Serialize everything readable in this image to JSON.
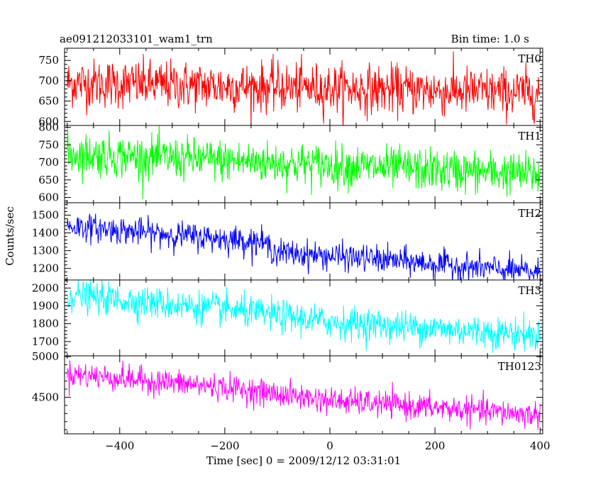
{
  "header": {
    "title": "ae091212033101_wam1_trn",
    "bin_time": "Bin time: 1.0 s"
  },
  "chart_data": {
    "type": "line",
    "xlabel": "Time [sec] 0 = 2009/12/12 03:31:01",
    "ylabel": "Counts/sec",
    "xlim": [
      -505,
      405
    ],
    "x_ticks": [
      -400,
      -200,
      0,
      200,
      400
    ],
    "x_minor_step": 50,
    "x_sample_range": [
      -500,
      400
    ],
    "x_sample_step": 1,
    "grid": false,
    "panels": [
      {
        "name": "TH0",
        "color": "#ff0000",
        "ylim": [
          590,
          780
        ],
        "y_ticks": [
          600,
          650,
          700,
          750
        ],
        "y_minor_step": 10,
        "trend": [
          [
            -500,
            695
          ],
          [
            400,
            670
          ]
        ],
        "noise": 30
      },
      {
        "name": "TH1",
        "color": "#00ff00",
        "ylim": [
          585,
          805
        ],
        "y_ticks": [
          600,
          650,
          700,
          750,
          800
        ],
        "y_minor_step": 10,
        "trend": [
          [
            -500,
            725
          ],
          [
            400,
            665
          ]
        ],
        "noise": 30
      },
      {
        "name": "TH2",
        "color": "#0000ff",
        "ylim": [
          1135,
          1570
        ],
        "y_ticks": [
          1200,
          1300,
          1400,
          1500
        ],
        "y_minor_step": 20,
        "trend": [
          [
            -500,
            1440
          ],
          [
            -300,
            1390
          ],
          [
            -130,
            1350
          ],
          [
            -100,
            1290
          ],
          [
            100,
            1250
          ],
          [
            400,
            1175
          ]
        ],
        "noise": 38
      },
      {
        "name": "TH3",
        "color": "#00ffff",
        "ylim": [
          1620,
          2045
        ],
        "y_ticks": [
          1700,
          1800,
          1900,
          2000
        ],
        "y_minor_step": 20,
        "trend": [
          [
            -500,
            1960
          ],
          [
            -200,
            1880
          ],
          [
            0,
            1810
          ],
          [
            400,
            1735
          ]
        ],
        "noise": 45
      },
      {
        "name": "TH0123",
        "color": "#ff00ff",
        "ylim": [
          4050,
          5010
        ],
        "y_ticks": [
          4500,
          5000
        ],
        "y_minor_step": 100,
        "trend": [
          [
            -500,
            4790
          ],
          [
            -200,
            4620
          ],
          [
            0,
            4460
          ],
          [
            400,
            4280
          ]
        ],
        "noise": 80
      }
    ]
  }
}
